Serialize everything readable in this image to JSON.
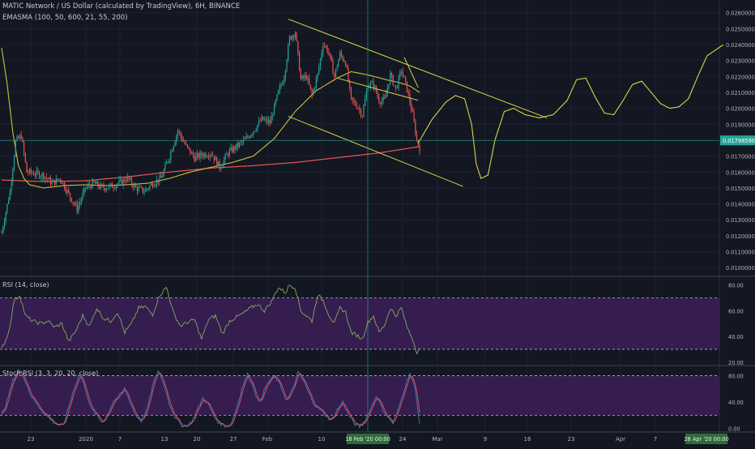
{
  "header": {
    "symbol_title": "MATIC Network / US Dollar (calculated by TradingView), 6H, BINANCE",
    "indicator_label": "EMASMA (100, 50, 600, 21, 55, 200)"
  },
  "price_axis": {
    "ticks": [
      "0.02600000",
      "0.02500000",
      "0.02400000",
      "0.02300000",
      "0.02200000",
      "0.02100000",
      "0.02000000",
      "0.01900000",
      "0.01700000",
      "0.01600000",
      "0.01500000",
      "0.01400000",
      "0.01300000",
      "0.01200000",
      "0.01100000",
      "0.01000000"
    ],
    "current_price": "0.01798590"
  },
  "rsi": {
    "label": "RSI (14, close)",
    "ticks": [
      "80.00",
      "60.00",
      "40.00",
      "20.00"
    ]
  },
  "stoch": {
    "label": "Stoch RSI (3, 3, 20, 20, close)",
    "ticks": [
      "80.00",
      "40.00",
      "0.00"
    ]
  },
  "time_axis": {
    "ticks": [
      "23",
      "2020",
      "7",
      "13",
      "20",
      "27",
      "Feb",
      "10",
      "24",
      "Mar",
      "9",
      "16",
      "23",
      "Apr",
      "7"
    ],
    "cursor_label": "18 Feb '20   00:00",
    "end_label": "28 Apr '20   00:00"
  },
  "colors": {
    "background": "#131722",
    "grid": "#1e2230",
    "bull": "#26a69a",
    "bear": "#ef5350",
    "ema": "#ef5350",
    "sma": "#c9c33a",
    "trendline": "#d9d34a",
    "rsi_line": "#7cae5c",
    "band": "#3c1f57",
    "stoch_k": "#3f7fc8",
    "stoch_d": "#ef5350"
  },
  "chart_data": [
    {
      "type": "candlestick",
      "title": "MATIC Network / US Dollar (calculated by TradingView), 6H, BINANCE",
      "ylim": [
        0.0095,
        0.0268
      ],
      "x_ticks": [
        "23",
        "2020",
        "7",
        "13",
        "20",
        "27",
        "Feb",
        "10",
        "24",
        "Mar",
        "9",
        "16",
        "23",
        "Apr",
        "7"
      ],
      "anchors": [
        [
          0,
          0.0122
        ],
        [
          6,
          0.0148
        ],
        [
          10,
          0.0179
        ],
        [
          14,
          0.0183
        ],
        [
          18,
          0.016
        ],
        [
          24,
          0.0159
        ],
        [
          30,
          0.0158
        ],
        [
          36,
          0.0153
        ],
        [
          42,
          0.0156
        ],
        [
          48,
          0.0146
        ],
        [
          54,
          0.0137
        ],
        [
          60,
          0.015
        ],
        [
          66,
          0.0153
        ],
        [
          72,
          0.015
        ],
        [
          78,
          0.0151
        ],
        [
          84,
          0.0153
        ],
        [
          90,
          0.0156
        ],
        [
          96,
          0.015
        ],
        [
          102,
          0.0148
        ],
        [
          108,
          0.0153
        ],
        [
          114,
          0.0156
        ],
        [
          120,
          0.017
        ],
        [
          126,
          0.0186
        ],
        [
          132,
          0.0176
        ],
        [
          138,
          0.0169
        ],
        [
          144,
          0.0171
        ],
        [
          150,
          0.0172
        ],
        [
          156,
          0.0163
        ],
        [
          162,
          0.0172
        ],
        [
          168,
          0.0176
        ],
        [
          174,
          0.018
        ],
        [
          180,
          0.0186
        ],
        [
          186,
          0.0193
        ],
        [
          192,
          0.0191
        ],
        [
          198,
          0.021
        ],
        [
          202,
          0.022
        ],
        [
          206,
          0.0244
        ],
        [
          210,
          0.0248
        ],
        [
          214,
          0.0218
        ],
        [
          218,
          0.022
        ],
        [
          222,
          0.0208
        ],
        [
          226,
          0.0221
        ],
        [
          230,
          0.0241
        ],
        [
          234,
          0.0235
        ],
        [
          238,
          0.022
        ],
        [
          242,
          0.0234
        ],
        [
          246,
          0.0229
        ],
        [
          250,
          0.0205
        ],
        [
          254,
          0.0202
        ],
        [
          258,
          0.0196
        ],
        [
          262,
          0.0215
        ],
        [
          266,
          0.0215
        ],
        [
          270,
          0.0205
        ],
        [
          274,
          0.0205
        ],
        [
          278,
          0.0221
        ],
        [
          282,
          0.0212
        ],
        [
          286,
          0.0224
        ],
        [
          290,
          0.0212
        ],
        [
          294,
          0.0196
        ],
        [
          297,
          0.018
        ],
        [
          299,
          0.0175
        ]
      ],
      "ema_anchors": [
        [
          0,
          0.0155
        ],
        [
          30,
          0.0154
        ],
        [
          60,
          0.01545
        ],
        [
          90,
          0.0157
        ],
        [
          120,
          0.016
        ],
        [
          150,
          0.01625
        ],
        [
          180,
          0.0164
        ],
        [
          210,
          0.0166
        ],
        [
          240,
          0.0169
        ],
        [
          270,
          0.0172
        ],
        [
          299,
          0.0176
        ]
      ],
      "sma_anchors": [
        [
          0,
          0.0238
        ],
        [
          4,
          0.0215
        ],
        [
          8,
          0.0185
        ],
        [
          12,
          0.0164
        ],
        [
          16,
          0.0156
        ],
        [
          20,
          0.0152
        ],
        [
          30,
          0.015
        ],
        [
          45,
          0.01515
        ],
        [
          60,
          0.0152
        ],
        [
          75,
          0.01515
        ],
        [
          90,
          0.0152
        ],
        [
          105,
          0.0153
        ],
        [
          120,
          0.0156
        ],
        [
          135,
          0.016
        ],
        [
          150,
          0.0163
        ],
        [
          165,
          0.0166
        ],
        [
          180,
          0.017
        ],
        [
          195,
          0.0181
        ],
        [
          210,
          0.0198
        ],
        [
          225,
          0.0211
        ],
        [
          240,
          0.0219
        ],
        [
          250,
          0.0223
        ],
        [
          262,
          0.0221
        ],
        [
          275,
          0.0218
        ],
        [
          285,
          0.0216
        ],
        [
          292,
          0.0214
        ],
        [
          299,
          0.021
        ]
      ],
      "projection_anchors": [
        [
          0,
          0.0178
        ],
        [
          6,
          0.0193
        ],
        [
          12,
          0.0204
        ],
        [
          16,
          0.0208
        ],
        [
          20,
          0.0206
        ],
        [
          23,
          0.019
        ],
        [
          25,
          0.0165
        ],
        [
          27,
          0.0156
        ],
        [
          30,
          0.0158
        ],
        [
          33,
          0.018
        ],
        [
          37,
          0.0198
        ],
        [
          41,
          0.02
        ],
        [
          46,
          0.0196
        ],
        [
          52,
          0.0194
        ],
        [
          58,
          0.0196
        ],
        [
          64,
          0.0205
        ],
        [
          68,
          0.0218
        ],
        [
          72,
          0.0219
        ],
        [
          76,
          0.0207
        ],
        [
          80,
          0.0197
        ],
        [
          84,
          0.0196
        ],
        [
          88,
          0.0205
        ],
        [
          92,
          0.0215
        ],
        [
          96,
          0.0217
        ],
        [
          100,
          0.021
        ],
        [
          104,
          0.0203
        ],
        [
          108,
          0.02
        ],
        [
          112,
          0.0201
        ],
        [
          116,
          0.0206
        ],
        [
          120,
          0.022
        ],
        [
          124,
          0.0233
        ],
        [
          128,
          0.0237
        ],
        [
          131,
          0.024
        ]
      ],
      "trendlines": [
        {
          "name": "upper-channel",
          "from": [
            205,
            0.0256
          ],
          "to": [
            390,
            0.0194
          ]
        },
        {
          "name": "lower-channel",
          "from": [
            205,
            0.0195
          ],
          "to": [
            330,
            0.0151
          ]
        },
        {
          "name": "wedge-top",
          "from": [
            288,
            0.0232
          ],
          "to": [
            298,
            0.0213
          ]
        },
        {
          "name": "wedge-bottom",
          "from": [
            240,
            0.0219
          ],
          "to": [
            298,
            0.0205
          ]
        }
      ]
    },
    {
      "type": "line",
      "title": "RSI (14, close)",
      "ylim": [
        18,
        86
      ],
      "bands": [
        30,
        70
      ],
      "anchors": [
        [
          0,
          30
        ],
        [
          5,
          43
        ],
        [
          9,
          68
        ],
        [
          13,
          72
        ],
        [
          17,
          56
        ],
        [
          22,
          52
        ],
        [
          28,
          50
        ],
        [
          33,
          52
        ],
        [
          38,
          47
        ],
        [
          43,
          50
        ],
        [
          48,
          36
        ],
        [
          53,
          44
        ],
        [
          58,
          56
        ],
        [
          63,
          48
        ],
        [
          68,
          62
        ],
        [
          73,
          54
        ],
        [
          78,
          52
        ],
        [
          83,
          59
        ],
        [
          88,
          43
        ],
        [
          93,
          50
        ],
        [
          98,
          62
        ],
        [
          103,
          63
        ],
        [
          108,
          57
        ],
        [
          113,
          72
        ],
        [
          118,
          78
        ],
        [
          123,
          58
        ],
        [
          128,
          48
        ],
        [
          133,
          51
        ],
        [
          138,
          53
        ],
        [
          143,
          38
        ],
        [
          148,
          53
        ],
        [
          153,
          56
        ],
        [
          158,
          42
        ],
        [
          163,
          52
        ],
        [
          168,
          55
        ],
        [
          173,
          58
        ],
        [
          178,
          62
        ],
        [
          183,
          65
        ],
        [
          188,
          60
        ],
        [
          193,
          67
        ],
        [
          198,
          78
        ],
        [
          203,
          74
        ],
        [
          206,
          80
        ],
        [
          210,
          78
        ],
        [
          214,
          60
        ],
        [
          218,
          56
        ],
        [
          222,
          52
        ],
        [
          226,
          72
        ],
        [
          230,
          68
        ],
        [
          234,
          57
        ],
        [
          238,
          50
        ],
        [
          242,
          62
        ],
        [
          246,
          59
        ],
        [
          250,
          43
        ],
        [
          254,
          41
        ],
        [
          258,
          38
        ],
        [
          262,
          51
        ],
        [
          266,
          56
        ],
        [
          270,
          43
        ],
        [
          274,
          49
        ],
        [
          278,
          62
        ],
        [
          282,
          56
        ],
        [
          286,
          62
        ],
        [
          290,
          47
        ],
        [
          294,
          38
        ],
        [
          297,
          28
        ],
        [
          299,
          30
        ]
      ]
    },
    {
      "type": "line",
      "title": "Stoch RSI (3, 3, 20, 20, close)",
      "ylim": [
        -4,
        94
      ],
      "bands": [
        20,
        80
      ],
      "anchors": [
        [
          0,
          20
        ],
        [
          4,
          42
        ],
        [
          8,
          72
        ],
        [
          12,
          88
        ],
        [
          16,
          78
        ],
        [
          20,
          55
        ],
        [
          24,
          40
        ],
        [
          28,
          30
        ],
        [
          32,
          20
        ],
        [
          36,
          12
        ],
        [
          40,
          6
        ],
        [
          44,
          4
        ],
        [
          48,
          32
        ],
        [
          52,
          62
        ],
        [
          56,
          82
        ],
        [
          60,
          60
        ],
        [
          64,
          30
        ],
        [
          68,
          20
        ],
        [
          72,
          10
        ],
        [
          76,
          22
        ],
        [
          80,
          42
        ],
        [
          84,
          48
        ],
        [
          88,
          60
        ],
        [
          92,
          40
        ],
        [
          96,
          20
        ],
        [
          100,
          12
        ],
        [
          104,
          28
        ],
        [
          108,
          64
        ],
        [
          112,
          88
        ],
        [
          116,
          68
        ],
        [
          120,
          38
        ],
        [
          124,
          18
        ],
        [
          128,
          6
        ],
        [
          132,
          4
        ],
        [
          136,
          10
        ],
        [
          140,
          28
        ],
        [
          144,
          46
        ],
        [
          148,
          36
        ],
        [
          152,
          18
        ],
        [
          156,
          8
        ],
        [
          160,
          4
        ],
        [
          164,
          6
        ],
        [
          168,
          30
        ],
        [
          172,
          62
        ],
        [
          176,
          82
        ],
        [
          180,
          64
        ],
        [
          184,
          38
        ],
        [
          188,
          58
        ],
        [
          192,
          74
        ],
        [
          196,
          78
        ],
        [
          200,
          62
        ],
        [
          204,
          42
        ],
        [
          208,
          58
        ],
        [
          212,
          84
        ],
        [
          216,
          72
        ],
        [
          220,
          52
        ],
        [
          224,
          36
        ],
        [
          228,
          28
        ],
        [
          232,
          20
        ],
        [
          236,
          12
        ],
        [
          240,
          28
        ],
        [
          244,
          40
        ],
        [
          248,
          22
        ],
        [
          252,
          8
        ],
        [
          256,
          3
        ],
        [
          260,
          12
        ],
        [
          264,
          30
        ],
        [
          268,
          50
        ],
        [
          272,
          32
        ],
        [
          276,
          18
        ],
        [
          280,
          8
        ],
        [
          284,
          30
        ],
        [
          288,
          60
        ],
        [
          292,
          84
        ],
        [
          296,
          58
        ],
        [
          299,
          8
        ]
      ]
    }
  ]
}
